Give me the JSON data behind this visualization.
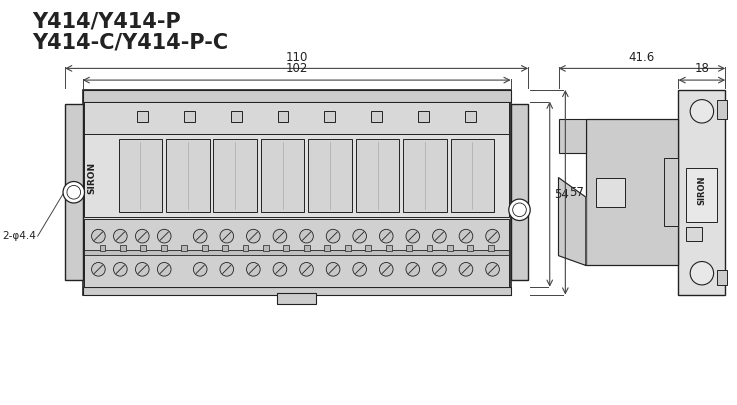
{
  "title_line1": "Y414/Y414-P",
  "title_line2": "Y414-C/Y414-P-C",
  "bg_color": "#ffffff",
  "lc": "#222222",
  "fl": "#e0e0e0",
  "fm": "#cccccc",
  "fd": "#b8b8b8",
  "tc": "#222222",
  "dc": "#444444",
  "dim_110": "110",
  "dim_102": "102",
  "dim_54": "54",
  "dim_57": "57",
  "dim_416": "41.6",
  "dim_18": "18",
  "dim_hole": "2-φ4.4",
  "siron": "SIRON"
}
